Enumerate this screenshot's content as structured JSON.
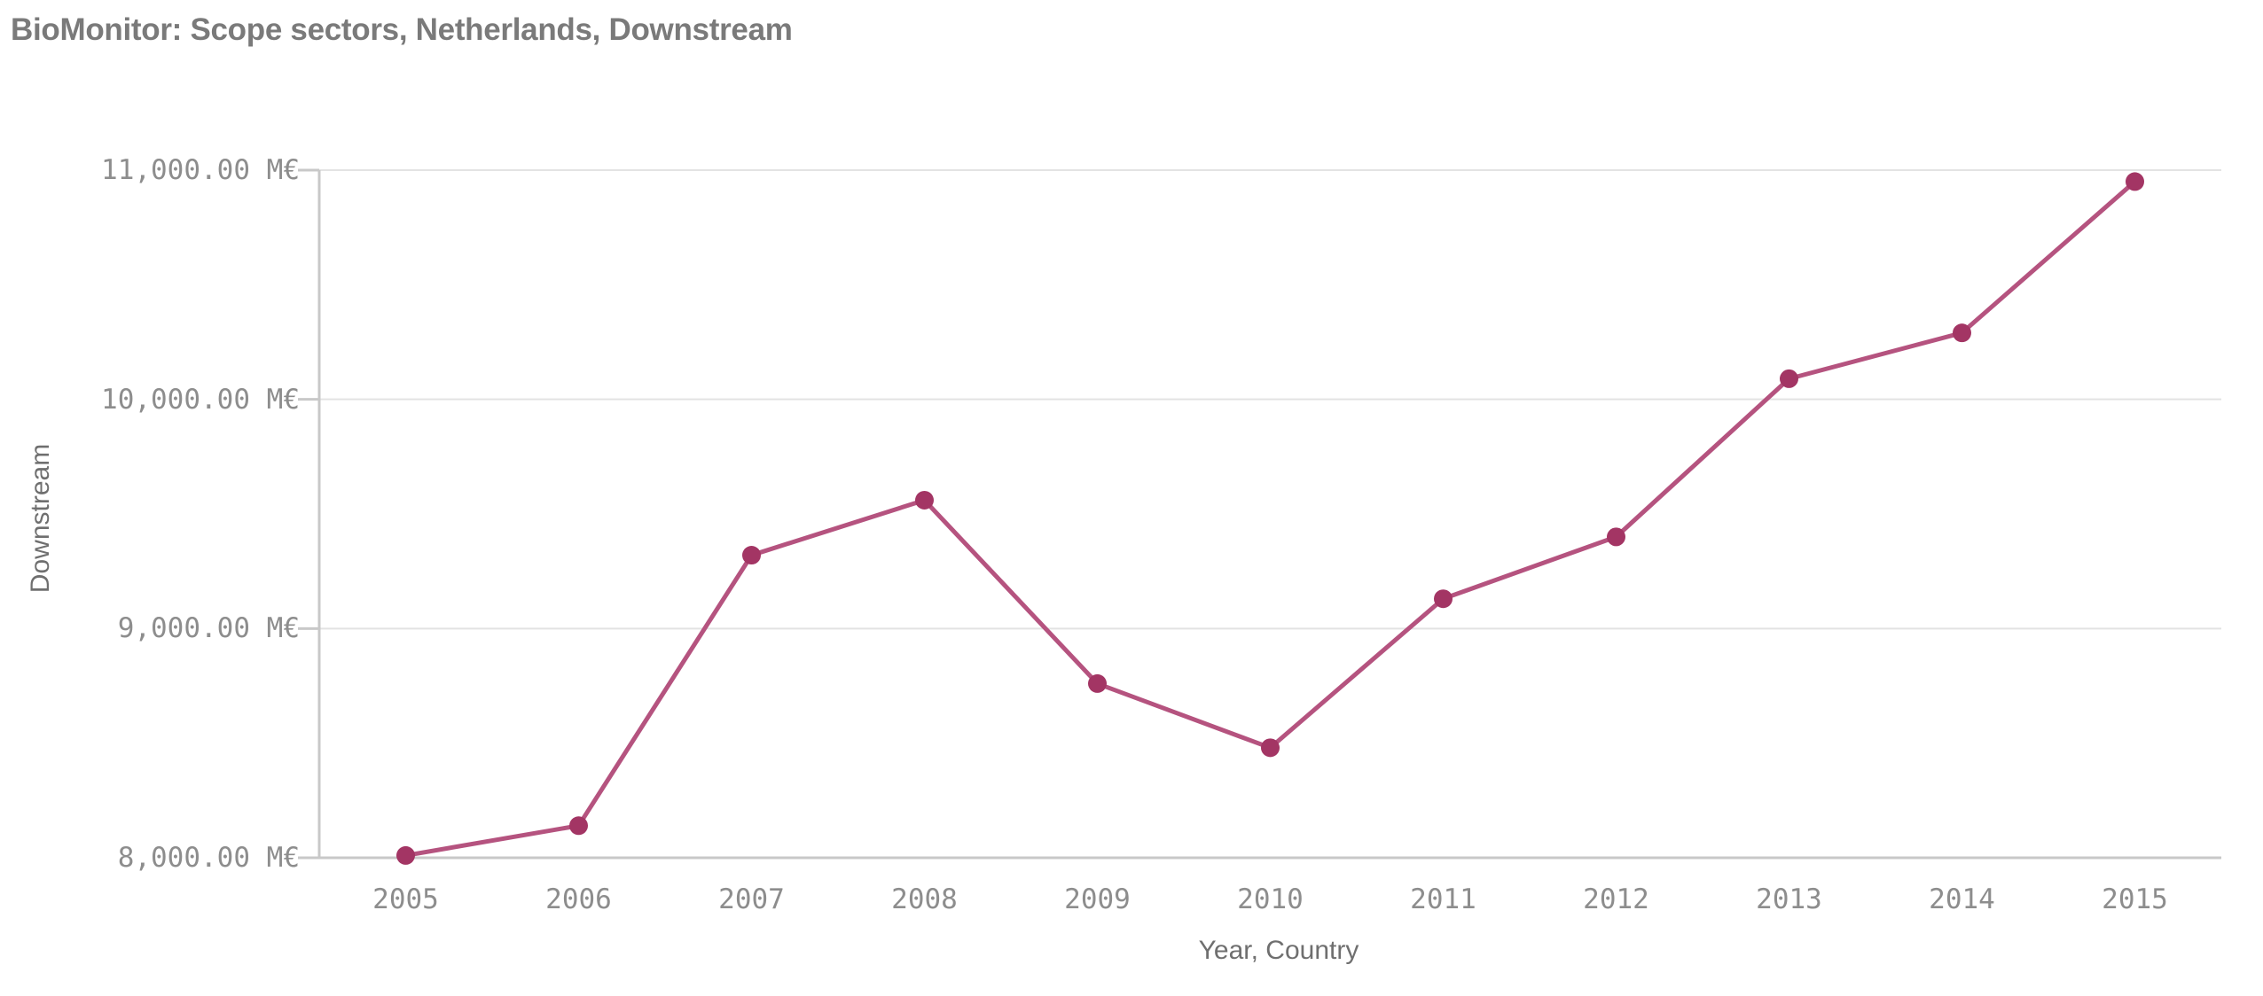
{
  "page": {
    "title": "BioMonitor: Scope sectors, Netherlands, Downstream"
  },
  "colors": {
    "background": "#ffffff",
    "title_text": "#7a7a7a",
    "tick_text": "#8d8d8d",
    "axis_title_text": "#6f6f6f",
    "gridline": "#e3e3e3",
    "axis_line": "#c8c8c8",
    "series_line": "#b5537f",
    "series_marker": "#a33564"
  },
  "chart_data": {
    "type": "line",
    "title": "BioMonitor: Scope sectors, Netherlands, Downstream",
    "xlabel": "Year, Country",
    "ylabel": "Downstream",
    "unit": "M€",
    "categories": [
      "2005",
      "2006",
      "2007",
      "2008",
      "2009",
      "2010",
      "2011",
      "2012",
      "2013",
      "2014",
      "2015"
    ],
    "series": [
      {
        "name": "Downstream",
        "values": [
          8010,
          8140,
          9320,
          9560,
          8760,
          8480,
          9130,
          9400,
          10090,
          10290,
          10950
        ]
      }
    ],
    "ylim": [
      8000,
      11000
    ],
    "y_ticks": [
      {
        "value": 11000,
        "label": "11,000.00 M€"
      },
      {
        "value": 10000,
        "label": "10,000.00 M€"
      },
      {
        "value": 9000,
        "label": "9,000.00 M€"
      },
      {
        "value": 8000,
        "label": "8,000.00 M€"
      }
    ],
    "grid": "horizontal",
    "legend": "none",
    "marker": "circle"
  }
}
